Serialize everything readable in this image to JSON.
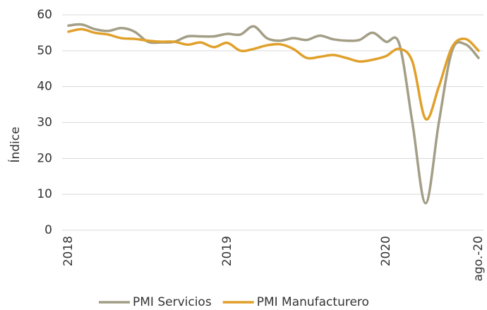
{
  "chart_data": {
    "type": "line",
    "y_label": "Índice",
    "categories": [
      "2018",
      null,
      null,
      null,
      null,
      null,
      null,
      null,
      null,
      null,
      null,
      null,
      "2019",
      null,
      null,
      null,
      null,
      null,
      null,
      null,
      null,
      null,
      null,
      null,
      "2020",
      null,
      null,
      null,
      null,
      null,
      null,
      "ago.-20"
    ],
    "series": [
      {
        "name": "PMI Servicios",
        "color": "#a39e86",
        "values": [
          57,
          57.3,
          56,
          55.5,
          56.3,
          55.3,
          52.5,
          52.3,
          52.5,
          54,
          54,
          54,
          54.7,
          54.5,
          56.8,
          53.5,
          52.8,
          53.5,
          53,
          54.2,
          53.2,
          52.8,
          53,
          55,
          52.5,
          52,
          30,
          7.5,
          30,
          50,
          51.8,
          48
        ]
      },
      {
        "name": "PMI Manufacturero",
        "color": "#e0a02a",
        "values": [
          55.3,
          56,
          55,
          54.5,
          53.5,
          53.3,
          52.8,
          52.5,
          52.5,
          51.7,
          52.3,
          51,
          52.2,
          50,
          50.5,
          51.5,
          51.8,
          50.5,
          48,
          48.3,
          48.8,
          48,
          47,
          47.5,
          48.5,
          50.5,
          47,
          31,
          40,
          51,
          53.3,
          50
        ]
      }
    ],
    "ylim": [
      0,
      60
    ],
    "yticks": [
      0,
      10,
      20,
      30,
      40,
      50,
      60
    ],
    "grid": true,
    "legend": "bottom"
  }
}
